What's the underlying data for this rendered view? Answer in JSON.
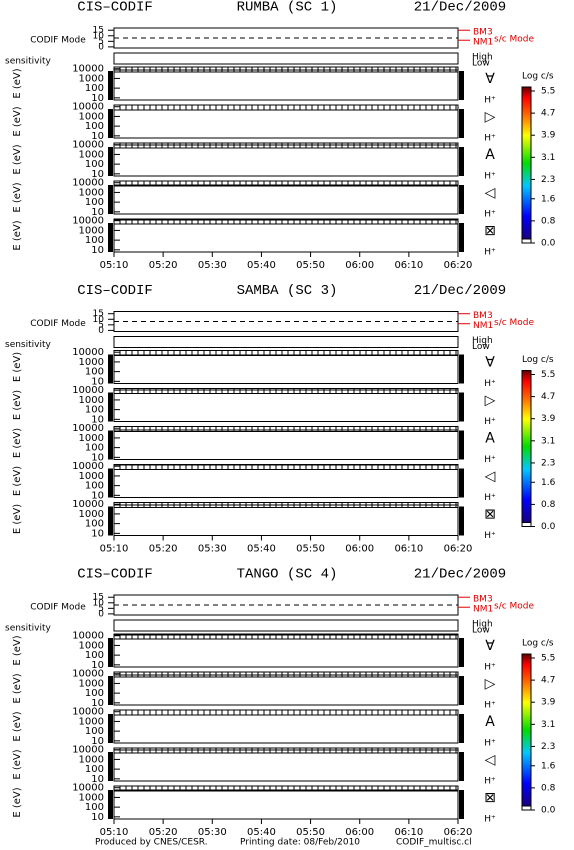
{
  "blocks": [
    {
      "instrument": "CIS–CODIF",
      "spacecraft": "RUMBA (SC 1)",
      "date": "21/Dec/2009",
      "mode": 8
    },
    {
      "instrument": "CIS–CODIF",
      "spacecraft": "SAMBA (SC 3)",
      "date": "21/Dec/2009",
      "mode": 8
    },
    {
      "instrument": "CIS–CODIF",
      "spacecraft": "TANGO (SC 4)",
      "date": "21/Dec/2009",
      "mode": 8
    }
  ],
  "mode_panel": {
    "label": "CODIF Mode",
    "ylim": [
      -1,
      17
    ],
    "yticks": [
      15,
      10,
      5,
      0
    ],
    "mode_labels": [
      "BM3",
      "NM1"
    ],
    "mode_label_values": [
      15,
      6
    ],
    "legend": "s/c Mode"
  },
  "sensitivity_panel": {
    "label": "sensitivity",
    "levels": [
      "High",
      "Low"
    ]
  },
  "energy_panels": {
    "axis_label": "E (eV)",
    "log_scale": true,
    "ylim": [
      6,
      15000
    ],
    "yticks": [
      10000,
      1000,
      100,
      10
    ],
    "species": "H⁺",
    "directions": [
      "∀",
      "▷",
      "A",
      "◁",
      "⊠"
    ]
  },
  "x_ticks": [
    "05:10",
    "05:20",
    "05:30",
    "05:40",
    "05:50",
    "06:00",
    "06:10",
    "06:20"
  ],
  "colorbar": {
    "title": "Log c/s",
    "clim": [
      0,
      5.5
    ],
    "ticks": [
      5.5,
      4.7,
      3.9,
      3.1,
      2.3,
      1.6,
      0.8,
      {
        "value": 0,
        "label": "0.0"
      }
    ]
  },
  "footer": [
    "Produced by CNES/CESR.",
    "Printing date: 08/Feb/2010",
    "CODIF_multisc.cl"
  ]
}
